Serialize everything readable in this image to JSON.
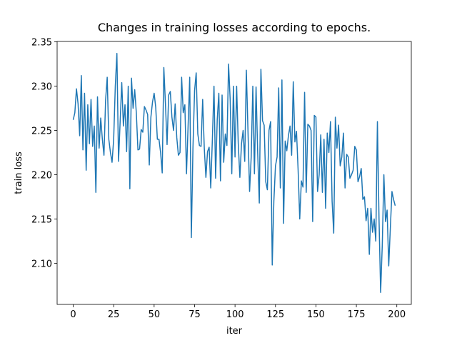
{
  "chart_data": {
    "type": "line",
    "title": "Changes in training losses according to epochs.",
    "x_label": "iter",
    "y_label": "train loss",
    "color": "#1f77b4",
    "xlim": [
      -9.95,
      208.95
    ],
    "ylim": [
      2.0535,
      2.3505
    ],
    "xticks": [
      0,
      25,
      50,
      75,
      100,
      125,
      150,
      175,
      200
    ],
    "yticks": [
      {
        "value": 2.1,
        "label": "2.10"
      },
      2.15,
      {
        "value": 2.2,
        "label": "2.20"
      },
      2.25,
      {
        "value": 2.3,
        "label": "2.30"
      },
      2.35
    ],
    "x": [
      0,
      1,
      2,
      3,
      4,
      5,
      6,
      7,
      8,
      9,
      10,
      11,
      12,
      13,
      14,
      15,
      16,
      17,
      18,
      19,
      20,
      21,
      22,
      23,
      24,
      25,
      26,
      27,
      28,
      29,
      30,
      31,
      32,
      33,
      34,
      35,
      36,
      37,
      38,
      39,
      40,
      41,
      42,
      43,
      44,
      45,
      46,
      47,
      48,
      49,
      50,
      51,
      52,
      53,
      54,
      55,
      56,
      57,
      58,
      59,
      60,
      61,
      62,
      63,
      64,
      65,
      66,
      67,
      68,
      69,
      70,
      71,
      72,
      73,
      74,
      75,
      76,
      77,
      78,
      79,
      80,
      81,
      82,
      83,
      84,
      85,
      86,
      87,
      88,
      89,
      90,
      91,
      92,
      93,
      94,
      95,
      96,
      97,
      98,
      99,
      100,
      101,
      102,
      103,
      104,
      105,
      106,
      107,
      108,
      109,
      110,
      111,
      112,
      113,
      114,
      115,
      116,
      117,
      118,
      119,
      120,
      121,
      122,
      123,
      124,
      125,
      126,
      127,
      128,
      129,
      130,
      131,
      132,
      133,
      134,
      135,
      136,
      137,
      138,
      139,
      140,
      141,
      142,
      143,
      144,
      145,
      146,
      147,
      148,
      149,
      150,
      151,
      152,
      153,
      154,
      155,
      156,
      157,
      158,
      159,
      160,
      161,
      162,
      163,
      164,
      165,
      166,
      167,
      168,
      169,
      170,
      171,
      172,
      173,
      174,
      175,
      176,
      177,
      178,
      179,
      180,
      181,
      182,
      183,
      184,
      185,
      186,
      187,
      188,
      189,
      190,
      191,
      192,
      193,
      194,
      195,
      196,
      197,
      198,
      199
    ],
    "values": [
      2.262,
      2.27,
      2.297,
      2.28,
      2.244,
      2.312,
      2.228,
      2.292,
      2.205,
      2.279,
      2.235,
      2.285,
      2.232,
      2.255,
      2.18,
      2.288,
      2.23,
      2.264,
      2.24,
      2.222,
      2.284,
      2.31,
      2.24,
      2.225,
      2.214,
      2.24,
      2.3,
      2.337,
      2.215,
      2.26,
      2.304,
      2.255,
      2.279,
      2.226,
      2.3,
      2.184,
      2.309,
      2.275,
      2.296,
      2.27,
      2.228,
      2.229,
      2.251,
      2.248,
      2.277,
      2.273,
      2.268,
      2.211,
      2.265,
      2.282,
      2.292,
      2.276,
      2.24,
      2.24,
      2.225,
      2.202,
      2.321,
      2.28,
      2.234,
      2.29,
      2.294,
      2.265,
      2.25,
      2.28,
      2.242,
      2.222,
      2.225,
      2.31,
      2.27,
      2.279,
      2.201,
      2.255,
      2.31,
      2.129,
      2.23,
      2.295,
      2.315,
      2.246,
      2.233,
      2.232,
      2.285,
      2.23,
      2.197,
      2.226,
      2.231,
      2.185,
      2.24,
      2.3,
      2.196,
      2.262,
      2.292,
      2.193,
      2.29,
      2.214,
      2.246,
      2.233,
      2.325,
      2.285,
      2.201,
      2.3,
      2.22,
      2.3,
      2.235,
      2.197,
      2.235,
      2.25,
      2.215,
      2.318,
      2.25,
      2.181,
      2.22,
      2.3,
      2.201,
      2.299,
      2.225,
      2.168,
      2.319,
      2.261,
      2.256,
      2.192,
      2.183,
      2.25,
      2.26,
      2.098,
      2.17,
      2.21,
      2.22,
      2.298,
      2.185,
      2.307,
      2.145,
      2.238,
      2.227,
      2.244,
      2.255,
      2.222,
      2.305,
      2.237,
      2.249,
      2.205,
      2.15,
      2.193,
      2.186,
      2.293,
      2.18,
      2.257,
      2.255,
      2.25,
      2.147,
      2.267,
      2.265,
      2.181,
      2.2,
      2.245,
      2.18,
      2.24,
      2.162,
      2.247,
      2.225,
      2.26,
      2.17,
      2.134,
      2.265,
      2.23,
      2.256,
      2.21,
      2.22,
      2.247,
      2.185,
      2.223,
      2.22,
      2.196,
      2.2,
      2.205,
      2.232,
      2.228,
      2.192,
      2.198,
      2.207,
      2.172,
      2.175,
      2.148,
      2.162,
      2.11,
      2.162,
      2.135,
      2.15,
      2.125,
      2.26,
      2.15,
      2.067,
      2.12,
      2.2,
      2.147,
      2.16,
      2.097,
      2.14,
      2.181,
      2.172,
      2.165
    ]
  }
}
